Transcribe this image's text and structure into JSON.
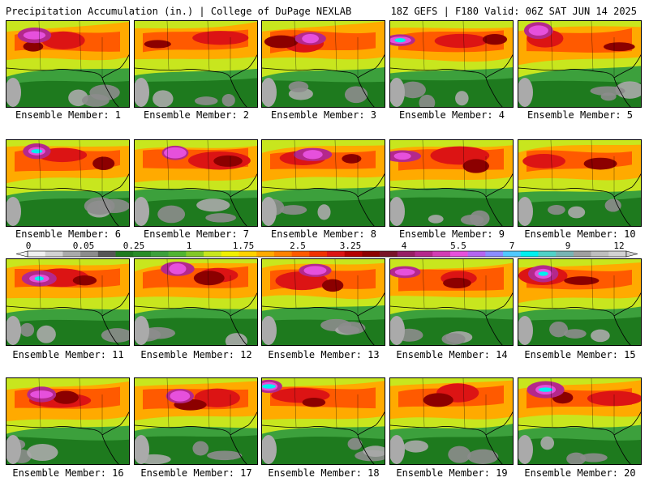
{
  "header": {
    "left": "Precipitation Accumulation (in.) | College of DuPage NEXLAB",
    "right": "18Z GEFS | F180 Valid: 06Z SAT JUN 14 2025"
  },
  "panels": [
    {
      "label": "Ensemble Member: 1",
      "blob": "magenta"
    },
    {
      "label": "Ensemble Member: 2",
      "blob": "none"
    },
    {
      "label": "Ensemble Member: 3",
      "blob": "magenta"
    },
    {
      "label": "Ensemble Member: 4",
      "blob": "cyan"
    },
    {
      "label": "Ensemble Member: 5",
      "blob": "magenta"
    },
    {
      "label": "Ensemble Member: 6",
      "blob": "cyan"
    },
    {
      "label": "Ensemble Member: 7",
      "blob": "magenta"
    },
    {
      "label": "Ensemble Member: 8",
      "blob": "magenta"
    },
    {
      "label": "Ensemble Member: 9",
      "blob": "magenta"
    },
    {
      "label": "Ensemble Member: 10",
      "blob": "none"
    },
    {
      "label": "Ensemble Member: 11",
      "blob": "cyan"
    },
    {
      "label": "Ensemble Member: 12",
      "blob": "magenta"
    },
    {
      "label": "Ensemble Member: 13",
      "blob": "magenta"
    },
    {
      "label": "Ensemble Member: 14",
      "blob": "magenta"
    },
    {
      "label": "Ensemble Member: 15",
      "blob": "cyan"
    },
    {
      "label": "Ensemble Member: 16",
      "blob": "magenta"
    },
    {
      "label": "Ensemble Member: 17",
      "blob": "magenta"
    },
    {
      "label": "Ensemble Member: 18",
      "blob": "cyan"
    },
    {
      "label": "Ensemble Member: 19",
      "blob": "none"
    },
    {
      "label": "Ensemble Member: 20",
      "blob": "cyan"
    }
  ],
  "colorbar": {
    "tick_labels": [
      "0",
      "0.05",
      "0.25",
      "1",
      "1.75",
      "2.5",
      "3.25",
      "4",
      "5.5",
      "7",
      "9",
      "12"
    ],
    "colors": [
      "#f0f0f0",
      "#d2d2d2",
      "#aaaaaa",
      "#8c8c8c",
      "#555555",
      "#1e7a1e",
      "#288c28",
      "#3ca03c",
      "#50b432",
      "#82c828",
      "#c8e61e",
      "#f0f000",
      "#ffd200",
      "#ffaa00",
      "#ff8200",
      "#ff5a00",
      "#f03200",
      "#dc1414",
      "#b40000",
      "#8c0000",
      "#781428",
      "#961e64",
      "#b4288c",
      "#d23cb4",
      "#e650dc",
      "#b464f0",
      "#8c8cff",
      "#50c8ff",
      "#00f0f0",
      "#50d2c8",
      "#78b4b4",
      "#a0a0a0",
      "#bebebe",
      "#d2d2d2"
    ]
  }
}
